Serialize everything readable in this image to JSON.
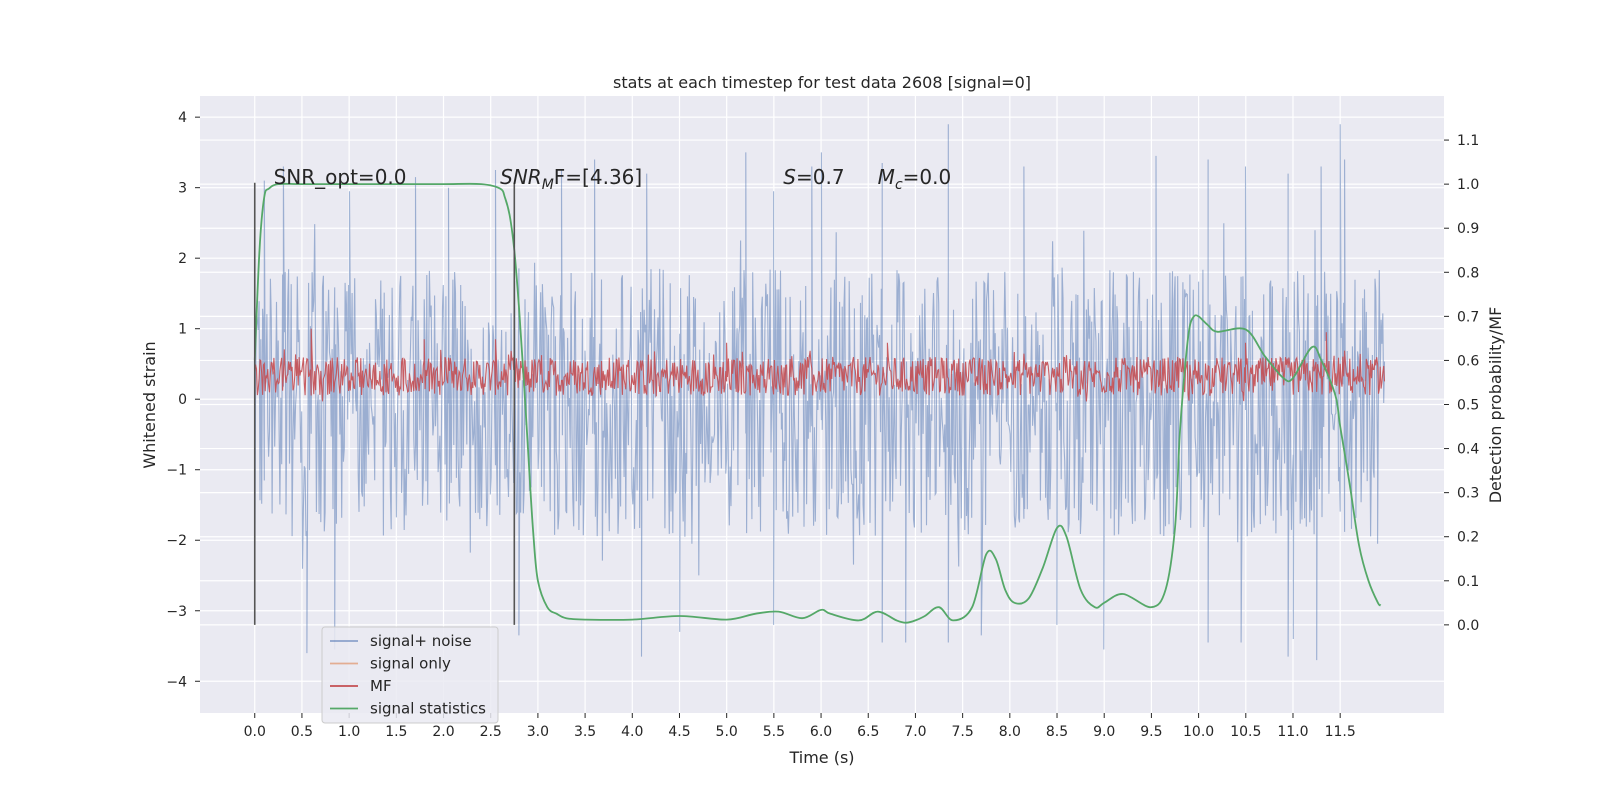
{
  "chart_data": {
    "type": "line",
    "title": "stats at each timestep for test data 2608 [signal=0]",
    "xlabel": "Time (s)",
    "ylabel_left": "Whitened strain",
    "ylabel_right": "Detection probability/MF",
    "xlim": [
      -0.58,
      12.6
    ],
    "ylim_left": [
      -4.45,
      4.3
    ],
    "ylim_right": [
      -0.2,
      1.2
    ],
    "x_ticks": [
      "0.0",
      "0.5",
      "1.0",
      "1.5",
      "2.0",
      "2.5",
      "3.0",
      "3.5",
      "4.0",
      "4.5",
      "5.0",
      "5.5",
      "6.0",
      "6.5",
      "7.0",
      "7.5",
      "8.0",
      "8.5",
      "9.0",
      "9.5",
      "10.0",
      "10.5",
      "11.0",
      "11.5"
    ],
    "y_left_ticks": [
      "4",
      "3",
      "2",
      "1",
      "0",
      "−1",
      "−2",
      "−3",
      "−4"
    ],
    "y_right_ticks": [
      "1.1",
      "1.0",
      "0.9",
      "0.8",
      "0.7",
      "0.6",
      "0.5",
      "0.4",
      "0.3",
      "0.2",
      "0.1",
      "0.0"
    ],
    "grid": true,
    "legend_position": "lower-left",
    "annotations": [
      {
        "text": "SNR_opt=0.0",
        "x": 0.2
      },
      {
        "text": "SNR",
        "sub": "M",
        "suffix": "F=[4.36]",
        "x": 2.6
      },
      {
        "text": "S",
        "suffix": "=0.7",
        "x": 5.6
      },
      {
        "text": "M",
        "sub": "c",
        "suffix": "=0.0",
        "x": 6.6
      }
    ],
    "vlines": [
      {
        "x": 0.0,
        "ymin": -3.2,
        "ymax": 3.07
      },
      {
        "x": 2.75,
        "ymin": -3.2,
        "ymax": 3.07
      }
    ],
    "series": [
      {
        "name": "signal+ noise",
        "color": "#4c72b0",
        "axis": "left",
        "x_range": [
          0.0,
          11.97
        ],
        "band_low": -1.95,
        "band_high": 1.85,
        "spikes_high": [
          [
            0.1,
            3.1
          ],
          [
            0.3,
            3.3
          ],
          [
            1.0,
            2.95
          ],
          [
            1.7,
            3.15
          ],
          [
            2.05,
            3.0
          ],
          [
            2.55,
            3.25
          ],
          [
            3.25,
            3.25
          ],
          [
            3.6,
            3.4
          ],
          [
            4.15,
            3.2
          ],
          [
            5.2,
            3.5
          ],
          [
            5.5,
            2.95
          ],
          [
            5.9,
            3.3
          ],
          [
            6.0,
            3.5
          ],
          [
            6.65,
            3.35
          ],
          [
            7.35,
            3.9
          ],
          [
            8.15,
            3.3
          ],
          [
            9.55,
            3.45
          ],
          [
            10.1,
            3.4
          ],
          [
            10.5,
            3.3
          ],
          [
            10.95,
            3.2
          ],
          [
            11.3,
            3.3
          ],
          [
            11.5,
            3.9
          ],
          [
            11.55,
            3.4
          ]
        ],
        "spikes_low": [
          [
            0.0,
            -3.05
          ],
          [
            0.85,
            -3.55
          ],
          [
            0.55,
            -3.6
          ],
          [
            2.8,
            -3.35
          ],
          [
            4.1,
            -3.65
          ],
          [
            4.5,
            -3.3
          ],
          [
            5.5,
            -3.2
          ],
          [
            6.65,
            -3.45
          ],
          [
            6.9,
            -3.45
          ],
          [
            7.35,
            -3.45
          ],
          [
            7.7,
            -3.35
          ],
          [
            8.5,
            -3.2
          ],
          [
            9.0,
            -3.55
          ],
          [
            10.1,
            -3.45
          ],
          [
            10.45,
            -3.45
          ],
          [
            10.95,
            -3.65
          ],
          [
            11.25,
            -3.7
          ],
          [
            11.0,
            -3.4
          ],
          [
            11.9,
            -2.05
          ]
        ]
      },
      {
        "name": "signal only",
        "color": "#dd8452",
        "axis": "left",
        "x": [],
        "y": []
      },
      {
        "name": "MF",
        "color": "#c44e52",
        "axis": "left",
        "x_range": [
          0.0,
          11.97
        ],
        "band_low": 0.05,
        "band_high": 0.6,
        "spikes_high": [
          [
            0.6,
            1.0
          ],
          [
            1.8,
            0.85
          ],
          [
            2.55,
            0.85
          ],
          [
            5.0,
            0.8
          ],
          [
            6.7,
            0.8
          ],
          [
            10.5,
            0.8
          ],
          [
            11.35,
            0.95
          ]
        ],
        "spikes_low": []
      },
      {
        "name": "signal statistics",
        "color": "#55a868",
        "axis": "right",
        "x": [
          0.0,
          0.05,
          0.1,
          0.15,
          0.25,
          0.5,
          1.0,
          1.5,
          2.0,
          2.4,
          2.6,
          2.65,
          2.7,
          2.75,
          2.8,
          2.85,
          2.9,
          2.95,
          3.0,
          3.1,
          3.2,
          3.3,
          3.5,
          4.0,
          4.5,
          5.0,
          5.3,
          5.55,
          5.8,
          6.0,
          6.1,
          6.4,
          6.6,
          6.8,
          6.9,
          7.0,
          7.1,
          7.25,
          7.4,
          7.6,
          7.75,
          7.85,
          7.95,
          8.05,
          8.2,
          8.35,
          8.5,
          8.6,
          8.75,
          8.9,
          9.0,
          9.2,
          9.5,
          9.65,
          9.75,
          9.8,
          9.85,
          9.9,
          9.95,
          10.0,
          10.05,
          10.1,
          10.2,
          10.5,
          10.7,
          10.9,
          11.0,
          11.2,
          11.3,
          11.45,
          11.5,
          11.6,
          11.7,
          11.8,
          11.9,
          11.93
        ],
        "y": [
          0.6,
          0.85,
          0.97,
          0.99,
          1.0,
          1.0,
          1.0,
          1.0,
          1.0,
          1.0,
          0.99,
          0.97,
          0.93,
          0.85,
          0.72,
          0.56,
          0.38,
          0.21,
          0.1,
          0.04,
          0.025,
          0.015,
          0.012,
          0.012,
          0.02,
          0.012,
          0.025,
          0.03,
          0.015,
          0.034,
          0.025,
          0.01,
          0.03,
          0.01,
          0.005,
          0.01,
          0.02,
          0.04,
          0.01,
          0.04,
          0.16,
          0.15,
          0.08,
          0.05,
          0.06,
          0.13,
          0.22,
          0.2,
          0.08,
          0.04,
          0.05,
          0.07,
          0.04,
          0.08,
          0.22,
          0.43,
          0.57,
          0.67,
          0.7,
          0.7,
          0.69,
          0.68,
          0.665,
          0.67,
          0.61,
          0.56,
          0.56,
          0.63,
          0.6,
          0.52,
          0.45,
          0.32,
          0.18,
          0.1,
          0.05,
          0.045
        ]
      }
    ]
  }
}
